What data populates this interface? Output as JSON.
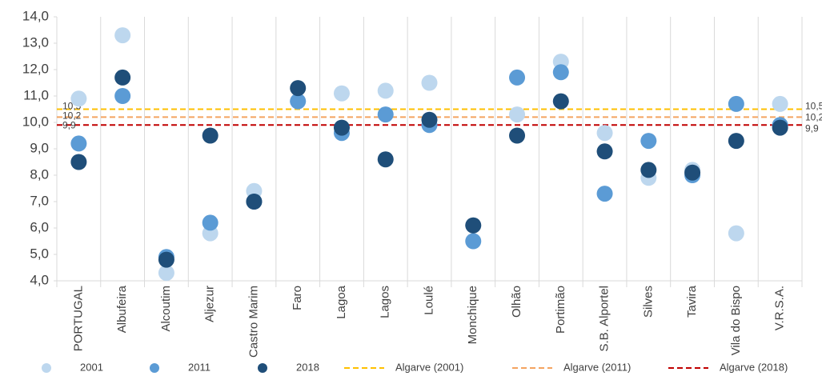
{
  "chart_data": {
    "type": "scatter",
    "categories": [
      "PORTUGAL",
      "Albufeira",
      "Alcoutim",
      "Aljezur",
      "Castro Marim",
      "Faro",
      "Lagoa",
      "Lagos",
      "Loulé",
      "Monchique",
      "Olhão",
      "Portimão",
      "S.B. Alportel",
      "Silves",
      "Tavira",
      "Vila do Bispo",
      "V.R.S.A."
    ],
    "series": [
      {
        "name": "2001",
        "color": "#bdd7ee",
        "values": [
          10.9,
          13.3,
          4.3,
          5.8,
          7.4,
          10.8,
          11.1,
          11.2,
          11.5,
          6.1,
          10.3,
          12.3,
          9.6,
          7.9,
          8.2,
          5.8,
          10.7
        ]
      },
      {
        "name": "2011",
        "color": "#5b9bd5",
        "values": [
          9.2,
          11.0,
          4.9,
          6.2,
          7.0,
          10.8,
          9.6,
          10.3,
          9.9,
          5.5,
          11.7,
          11.9,
          7.3,
          9.3,
          8.0,
          10.7,
          9.9
        ]
      },
      {
        "name": "2018",
        "color": "#1f4e79",
        "values": [
          8.5,
          11.7,
          4.8,
          9.5,
          7.0,
          11.3,
          9.8,
          8.6,
          10.1,
          6.1,
          9.5,
          10.8,
          8.9,
          8.2,
          8.1,
          9.3,
          9.8
        ]
      }
    ],
    "reference_lines": [
      {
        "name": "Algarve (2001)",
        "value": 10.5,
        "label": "10,5",
        "color": "#ffc000"
      },
      {
        "name": "Algarve (2011)",
        "value": 10.2,
        "label": "10,2",
        "color": "#f4a460"
      },
      {
        "name": "Algarve (2018)",
        "value": 9.9,
        "label": "9,9",
        "color": "#c00000"
      }
    ],
    "ylim": [
      4,
      14
    ],
    "yticks": [
      {
        "value": 4,
        "label": "4,0"
      },
      {
        "value": 5,
        "label": "5,0"
      },
      {
        "value": 6,
        "label": "6,0"
      },
      {
        "value": 7,
        "label": "7,0"
      },
      {
        "value": 8,
        "label": "8,0"
      },
      {
        "value": 9,
        "label": "9,0"
      },
      {
        "value": 10,
        "label": "10,0"
      },
      {
        "value": 11,
        "label": "11,0"
      },
      {
        "value": 12,
        "label": "12,0"
      },
      {
        "value": 13,
        "label": "13,0"
      },
      {
        "value": 14,
        "label": "14,0"
      }
    ],
    "legend": "bottom"
  }
}
